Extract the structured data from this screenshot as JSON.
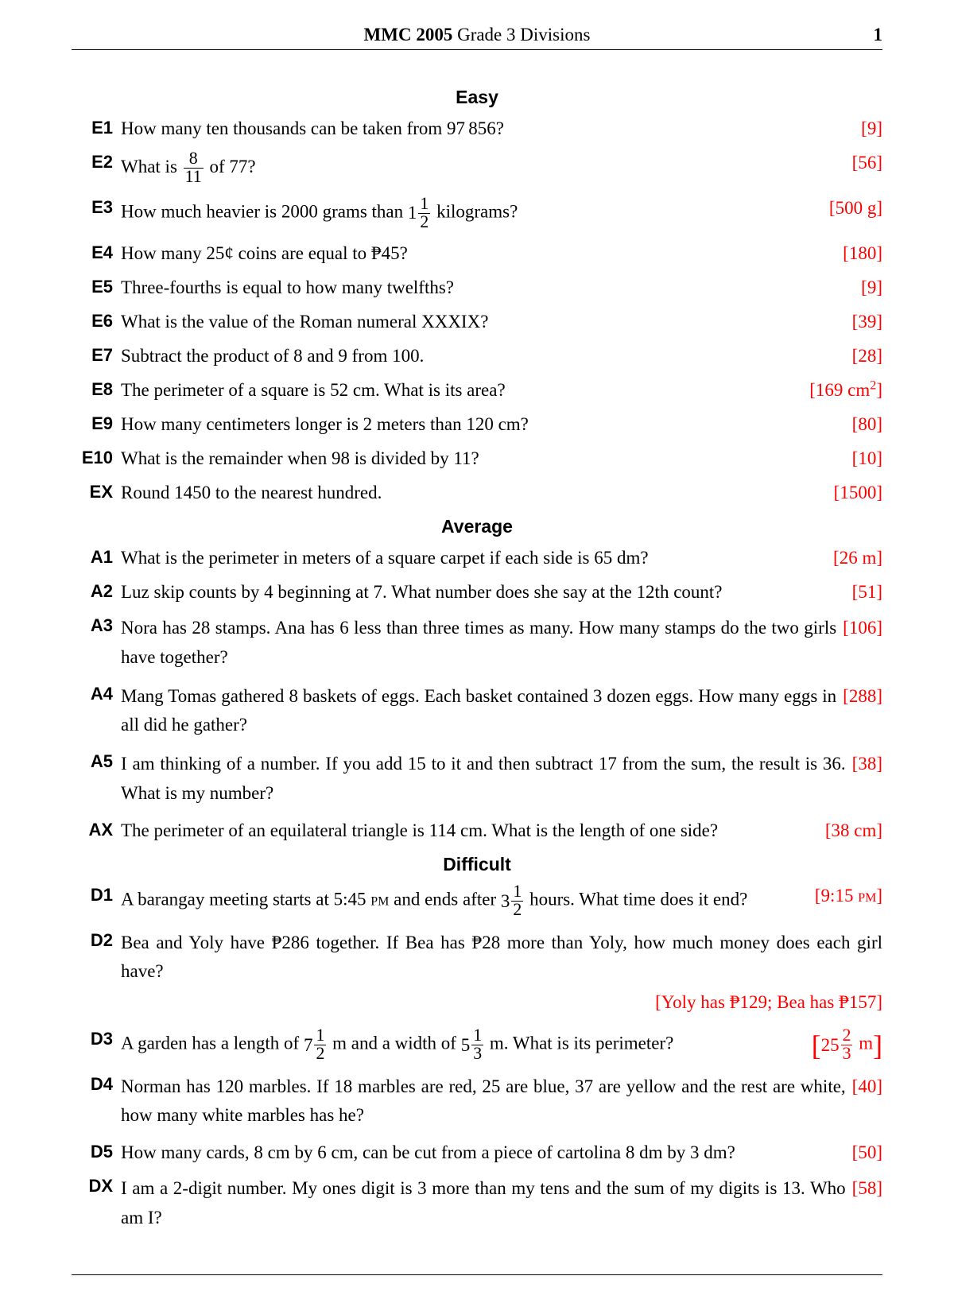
{
  "header": {
    "left_bold": "MMC 2005",
    "left_rest": " Grade 3 Divisions",
    "page": "1"
  },
  "answer_color": "#ff0000",
  "sections": {
    "easy": "Easy",
    "average": "Average",
    "difficult": "Difficult"
  },
  "easy": [
    {
      "id": "E1",
      "q_parts": [
        "How many ten thousands can be taken from 97",
        "856?"
      ],
      "ans": "[9]",
      "thinspace_after_first": true
    },
    {
      "id": "E2",
      "q_parts": [
        "What is ",
        " of 77?"
      ],
      "frac": {
        "n": "8",
        "d": "11"
      },
      "ans": "[56]"
    },
    {
      "id": "E3",
      "q_parts": [
        "How much heavier is 2000 grams than ",
        " kilograms?"
      ],
      "mixed": {
        "w": "1",
        "n": "1",
        "d": "2"
      },
      "ans": "[500 g]"
    },
    {
      "id": "E4",
      "q_plain": "How many 25¢ coins are equal to ₱45?",
      "ans": "[180]"
    },
    {
      "id": "E5",
      "q_plain": "Three-fourths is equal to how many twelfths?",
      "ans": "[9]"
    },
    {
      "id": "E6",
      "q_plain": "What is the value of the Roman numeral XXXIX?",
      "ans": "[39]"
    },
    {
      "id": "E7",
      "q_plain": "Subtract the product of 8 and 9 from 100.",
      "ans": "[28]"
    },
    {
      "id": "E8",
      "q_plain": "The perimeter of a square is 52 cm. What is its area?",
      "ans_html": "[169 cm<sup>2</sup>]"
    },
    {
      "id": "E9",
      "q_plain": "How many centimeters longer is 2 meters than 120 cm?",
      "ans": "[80]"
    },
    {
      "id": "E10",
      "q_plain": "What is the remainder when 98 is divided by 11?",
      "ans": "[10]"
    },
    {
      "id": "EX",
      "q_plain": "Round 1450 to the nearest hundred.",
      "ans": "[1500]"
    }
  ],
  "average": [
    {
      "id": "A1",
      "q_plain": "What is the perimeter in meters of a square carpet if each side is 65 dm?",
      "ans": "[26 m]"
    },
    {
      "id": "A2",
      "q_plain": "Luz skip counts by 4 beginning at 7. What number does she say at the 12th count?",
      "ans": "[51]"
    },
    {
      "id": "A3",
      "q_plain": "Nora has 28 stamps. Ana has 6 less than three times as many. How many stamps do the two girls have together?",
      "ans": "[106]"
    },
    {
      "id": "A4",
      "q_plain": "Mang Tomas gathered 8 baskets of eggs. Each basket contained 3 dozen eggs. How many eggs in all did he gather?",
      "ans": "[288]"
    },
    {
      "id": "A5",
      "q_plain": "I am thinking of a number. If you add 15 to it and then subtract 17 from the sum, the result is 36. What is my number?",
      "ans": "[38]"
    },
    {
      "id": "AX",
      "q_plain": "The perimeter of an equilateral triangle is 114 cm. What is the length of one side?",
      "ans": "[38 cm]"
    }
  ],
  "difficult": [
    {
      "id": "D1",
      "q_parts_sc": [
        "A barangay meeting starts at 5:45 ",
        "pm",
        " and ends after "
      ],
      "mixed": {
        "w": "3",
        "n": "1",
        "d": "2"
      },
      "q_tail": " hours. What time does it end?",
      "ans_sc": [
        "[9:15 ",
        "pm",
        "]"
      ]
    },
    {
      "id": "D2",
      "q_plain": "Bea and Yoly have ₱286 together. If Bea has ₱28 more than Yoly, how much money does each girl have?",
      "ans_block": "[Yoly has ₱129; Bea has ₱157]"
    },
    {
      "id": "D3",
      "q_pre": "A garden has a length of ",
      "mixed1": {
        "w": "7",
        "n": "1",
        "d": "2"
      },
      "q_mid": " m and a width of ",
      "mixed2": {
        "w": "5",
        "n": "1",
        "d": "3"
      },
      "q_post": " m. What is its perimeter?",
      "ans_mixed": {
        "w": "25",
        "n": "2",
        "d": "3",
        "unit": " m"
      }
    },
    {
      "id": "D4",
      "q_plain": "Norman has 120 marbles. If 18 marbles are red, 25 are blue, 37 are yellow and the rest are white, how many white marbles has he?",
      "ans": "[40]"
    },
    {
      "id": "D5",
      "q_plain": "How many cards, 8 cm by 6 cm, can be cut from a piece of cartolina 8 dm by 3 dm?",
      "ans": "[50]"
    },
    {
      "id": "DX",
      "q_plain": "I am a 2-digit number. My ones digit is 3 more than my tens and the sum of my digits is 13. Who am I?",
      "ans": "[58]"
    }
  ]
}
